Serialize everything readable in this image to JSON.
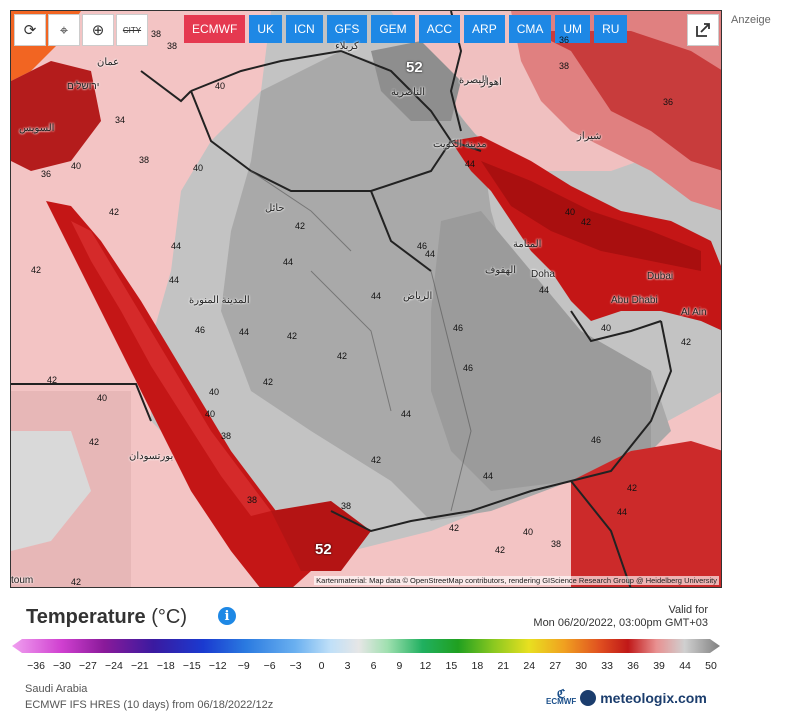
{
  "toolbar": {
    "refresh_icon": "refresh-icon",
    "location_icon": "location-pin-icon",
    "zoom_icon": "zoom-icon",
    "city_label": "CITY",
    "share_icon": "share-icon"
  },
  "models": [
    {
      "label": "ECMWF",
      "active": true
    },
    {
      "label": "UK",
      "active": false
    },
    {
      "label": "ICN",
      "active": false
    },
    {
      "label": "GFS",
      "active": false
    },
    {
      "label": "GEM",
      "active": false
    },
    {
      "label": "ACC",
      "active": false
    },
    {
      "label": "ARP",
      "active": false
    },
    {
      "label": "CMA",
      "active": false
    },
    {
      "label": "UM",
      "active": false
    },
    {
      "label": "RU",
      "active": false
    }
  ],
  "ad_label": "Anzeige",
  "map": {
    "attribution": "Kartenmaterial: Map data © OpenStreetMap contributors, rendering GIScience Research Group @ Heidelberg University",
    "places": {
      "doha": "Doha",
      "dubai": "Dubai",
      "abu_dhabi": "Abu Dhabi",
      "al_ain": "Al Ain",
      "riyadh": "الرياض",
      "kuwait": "مدينة الكويت",
      "basra": "البصرة",
      "nasiriyah": "الناصرية",
      "karbala": "كربلاء",
      "hail": "حائل",
      "medina": "المدينة المنورة",
      "manama": "المنامة",
      "hofuf": "الهفوف",
      "amman": "عمان",
      "jerusalem": "ירושלים",
      "suez": "السويس",
      "port_sudan": "بورتسودان",
      "khartoum": "toum",
      "shiraz": "شيراز",
      "ahvaz": "اهواز"
    },
    "temps": {
      "t52_max": "52",
      "t52_min": "52",
      "t38a": "38",
      "t40a": "40",
      "t40b": "40",
      "t42a": "42",
      "t44a": "44",
      "t42b": "42",
      "t44b": "44",
      "t46a": "46",
      "t44c": "44",
      "t42c": "42",
      "t46b": "46",
      "t44d": "44",
      "t42d": "42",
      "t46c": "46",
      "t44e": "44",
      "t42e": "42",
      "t46d": "46",
      "t44f": "44",
      "t40c": "40",
      "t42f": "42",
      "t38b": "38",
      "t36a": "36",
      "t42g": "42",
      "t40d": "40",
      "t38c": "38",
      "t42h": "42",
      "t44g": "44",
      "t44h": "44",
      "t42i": "42",
      "t40e": "40",
      "t38d": "38",
      "t36b": "36",
      "t38e": "38",
      "t40f": "40",
      "t42j": "42",
      "t44i": "44",
      "t46e": "46",
      "t44j": "44",
      "t42k": "42",
      "t40g": "40",
      "t38f": "38",
      "t36c": "36",
      "t34a": "34",
      "t42l": "42",
      "t44k": "44",
      "t42m": "42",
      "t40h": "40",
      "t42n": "42",
      "t38g": "38",
      "t38h": "38",
      "t40i": "40",
      "t42o": "42"
    }
  },
  "legend": {
    "title": "Temperature",
    "unit": "(°C)",
    "info_icon": "info-icon",
    "valid_label": "Valid for",
    "valid_time": "Mon 06/20/2022, 03:00pm GMT+03",
    "ticks": [
      "−36",
      "−30",
      "−27",
      "−24",
      "−21",
      "−18",
      "−15",
      "−12",
      "−9",
      "−6",
      "−3",
      "0",
      "3",
      "6",
      "9",
      "12",
      "15",
      "18",
      "21",
      "24",
      "27",
      "30",
      "33",
      "36",
      "39",
      "44",
      "50"
    ],
    "region": "Saudi Arabia",
    "model_run": "ECMWF IFS HRES (10 days) from 06/18/2022/12z",
    "brand_small": "ECMWF",
    "brand": "meteologix.com"
  },
  "colors": {
    "active_tab": "#e53950",
    "tab": "#1e88e5",
    "hot_red": "#c41616",
    "gray_land": "#b8b8b8"
  }
}
